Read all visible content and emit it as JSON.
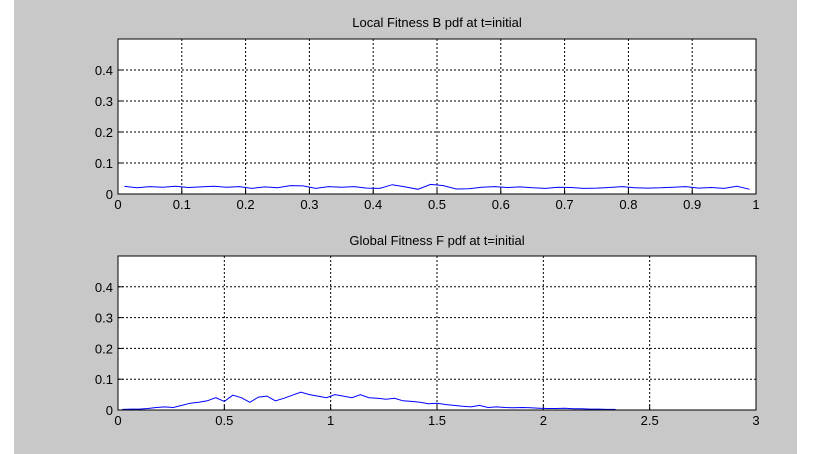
{
  "window": {
    "background": "#c8c8c8",
    "axes_background": "#ffffff",
    "line_color": "#0000ff",
    "grid_color": "#000000"
  },
  "chart_data": [
    {
      "type": "line",
      "title": "Local Fitness B pdf at t=initial",
      "xlabel": "",
      "ylabel": "",
      "xlim": [
        0,
        1
      ],
      "ylim": [
        0,
        0.5
      ],
      "xticks": [
        0,
        0.1,
        0.2,
        0.3,
        0.4,
        0.5,
        0.6,
        0.7,
        0.8,
        0.9,
        1
      ],
      "xtick_labels": [
        "0",
        "0.1",
        "0.2",
        "0.3",
        "0.4",
        "0.5",
        "0.6",
        "0.7",
        "0.8",
        "0.9",
        "1"
      ],
      "yticks": [
        0,
        0.1,
        0.2,
        0.3,
        0.4
      ],
      "ytick_labels": [
        "0",
        "0.1",
        "0.2",
        "0.3",
        "0.4"
      ],
      "grid": true,
      "series": [
        {
          "color": "#0000ff",
          "x": [
            0.01,
            0.03,
            0.05,
            0.07,
            0.09,
            0.11,
            0.13,
            0.15,
            0.17,
            0.19,
            0.21,
            0.23,
            0.25,
            0.27,
            0.29,
            0.31,
            0.33,
            0.35,
            0.37,
            0.39,
            0.41,
            0.43,
            0.45,
            0.47,
            0.49,
            0.51,
            0.53,
            0.55,
            0.57,
            0.59,
            0.61,
            0.63,
            0.65,
            0.67,
            0.69,
            0.71,
            0.73,
            0.75,
            0.77,
            0.79,
            0.81,
            0.83,
            0.85,
            0.87,
            0.89,
            0.91,
            0.93,
            0.95,
            0.97,
            0.99
          ],
          "y": [
            0.025,
            0.02,
            0.024,
            0.022,
            0.025,
            0.021,
            0.023,
            0.025,
            0.022,
            0.024,
            0.018,
            0.023,
            0.02,
            0.027,
            0.026,
            0.018,
            0.024,
            0.022,
            0.024,
            0.019,
            0.018,
            0.03,
            0.023,
            0.015,
            0.031,
            0.027,
            0.016,
            0.017,
            0.022,
            0.024,
            0.021,
            0.023,
            0.02,
            0.018,
            0.022,
            0.021,
            0.018,
            0.019,
            0.021,
            0.024,
            0.02,
            0.019,
            0.02,
            0.022,
            0.024,
            0.019,
            0.021,
            0.018,
            0.025,
            0.015
          ]
        }
      ]
    },
    {
      "type": "line",
      "title": "Global Fitness F pdf at t=initial",
      "xlabel": "",
      "ylabel": "",
      "xlim": [
        0,
        3
      ],
      "ylim": [
        0,
        0.5
      ],
      "xticks": [
        0,
        0.5,
        1,
        1.5,
        2,
        2.5,
        3
      ],
      "xtick_labels": [
        "0",
        "0.5",
        "1",
        "1.5",
        "2",
        "2.5",
        "3"
      ],
      "yticks": [
        0,
        0.1,
        0.2,
        0.3,
        0.4
      ],
      "ytick_labels": [
        "0",
        "0.1",
        "0.2",
        "0.3",
        "0.4"
      ],
      "grid": true,
      "series": [
        {
          "color": "#0000ff",
          "x": [
            0.02,
            0.06,
            0.1,
            0.14,
            0.18,
            0.22,
            0.26,
            0.3,
            0.34,
            0.38,
            0.42,
            0.46,
            0.5,
            0.54,
            0.58,
            0.62,
            0.66,
            0.7,
            0.74,
            0.78,
            0.82,
            0.86,
            0.9,
            0.94,
            0.98,
            1.02,
            1.06,
            1.1,
            1.14,
            1.18,
            1.22,
            1.26,
            1.3,
            1.34,
            1.38,
            1.42,
            1.46,
            1.5,
            1.54,
            1.58,
            1.62,
            1.66,
            1.7,
            1.74,
            1.78,
            1.82,
            1.86,
            1.9,
            1.94,
            1.98,
            2.02,
            2.06,
            2.1,
            2.14,
            2.18,
            2.22,
            2.26,
            2.3,
            2.34
          ],
          "y": [
            0.002,
            0.003,
            0.003,
            0.005,
            0.008,
            0.01,
            0.008,
            0.015,
            0.022,
            0.025,
            0.03,
            0.04,
            0.028,
            0.048,
            0.04,
            0.025,
            0.042,
            0.045,
            0.03,
            0.038,
            0.048,
            0.058,
            0.05,
            0.045,
            0.04,
            0.05,
            0.045,
            0.04,
            0.05,
            0.04,
            0.038,
            0.035,
            0.038,
            0.03,
            0.028,
            0.025,
            0.02,
            0.022,
            0.018,
            0.015,
            0.012,
            0.01,
            0.015,
            0.008,
            0.01,
            0.008,
            0.007,
            0.008,
            0.007,
            0.006,
            0.005,
            0.005,
            0.006,
            0.004,
            0.004,
            0.003,
            0.003,
            0.002,
            0.002
          ]
        }
      ]
    }
  ]
}
